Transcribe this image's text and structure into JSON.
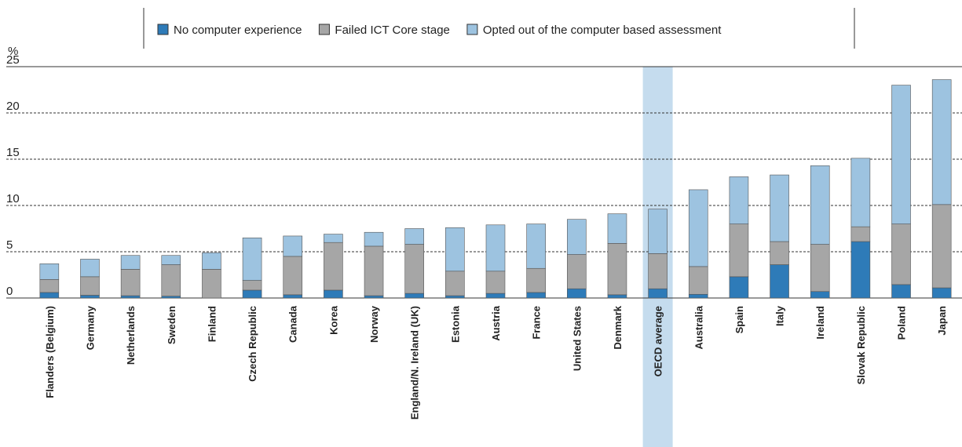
{
  "chart_data": {
    "type": "stacked_bar",
    "y_label": "%",
    "categories": [
      "Flanders (Belgium)",
      "Germany",
      "Netherlands",
      "Sweden",
      "Finland",
      "Czech Republic",
      "Canada",
      "Korea",
      "Norway",
      "England/N. Ireland (UK)",
      "Estonia",
      "Austria",
      "France",
      "United States",
      "Denmark",
      "OECD average",
      "Australia",
      "Spain",
      "Italy",
      "Ireland",
      "Slovak Republic",
      "Poland",
      "Japan"
    ],
    "series": [
      {
        "name": "No computer experience",
        "color": "#2e7bb8",
        "values": [
          0.6,
          0.3,
          0.25,
          0.2,
          0,
          0.85,
          0.35,
          0.85,
          0.25,
          0.5,
          0.25,
          0.5,
          0.6,
          1.0,
          0.35,
          1.0,
          0.4,
          2.3,
          3.6,
          0.7,
          6.1,
          1.45,
          1.1
        ]
      },
      {
        "name": "Failed ICT Core stage",
        "color": "#a6a6a6",
        "values": [
          1.4,
          2.0,
          2.85,
          3.4,
          3.1,
          1.05,
          4.15,
          5.15,
          5.35,
          5.3,
          2.65,
          2.4,
          2.6,
          3.7,
          5.55,
          3.8,
          3.0,
          5.7,
          2.5,
          5.1,
          1.6,
          6.55,
          9.0
        ]
      },
      {
        "name": "Opted out of the computer based assessment",
        "color": "#9dc3e0",
        "values": [
          1.7,
          1.9,
          1.5,
          1.0,
          1.8,
          4.6,
          2.2,
          0.9,
          1.5,
          1.7,
          4.7,
          5.0,
          4.8,
          3.8,
          3.2,
          4.8,
          8.3,
          5.1,
          7.2,
          8.5,
          7.4,
          15.0,
          13.5
        ]
      }
    ],
    "highlight_category_index": 15,
    "highlight_color": "#c5dcee",
    "ylim": [
      0,
      25
    ],
    "yticks": [
      0,
      5,
      10,
      15,
      20,
      25
    ],
    "grid": true
  }
}
